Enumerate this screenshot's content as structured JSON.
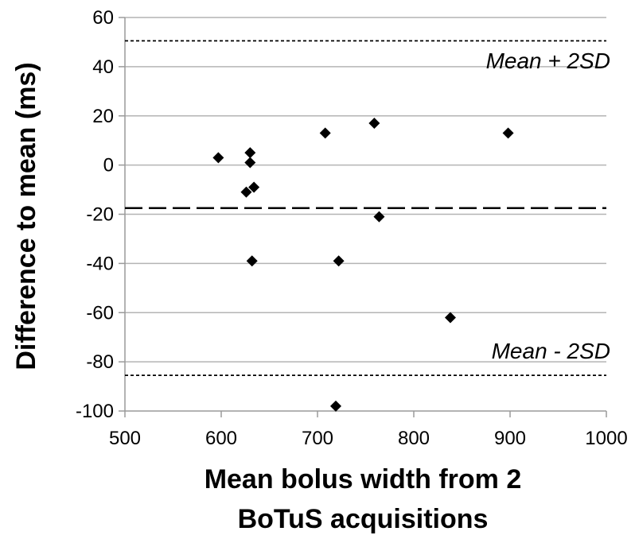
{
  "chart_data": {
    "type": "scatter",
    "title": "",
    "xlabel_lines": [
      "Mean  bolus width from 2",
      "BoTuS acquisitions"
    ],
    "ylabel": "Difference to mean (ms)",
    "xlim": [
      500,
      1000
    ],
    "ylim": [
      -100,
      60
    ],
    "x_ticks": [
      500,
      600,
      700,
      800,
      900,
      1000
    ],
    "y_ticks": [
      60,
      40,
      20,
      0,
      -20,
      -40,
      -60,
      -80,
      -100
    ],
    "grid": "horizontal",
    "points": [
      {
        "x": 597,
        "y": 3
      },
      {
        "x": 630,
        "y": 5
      },
      {
        "x": 630,
        "y": 1
      },
      {
        "x": 626,
        "y": -11
      },
      {
        "x": 634,
        "y": -9
      },
      {
        "x": 632,
        "y": -39
      },
      {
        "x": 708,
        "y": 13
      },
      {
        "x": 722,
        "y": -39
      },
      {
        "x": 719,
        "y": -98
      },
      {
        "x": 759,
        "y": 17
      },
      {
        "x": 764,
        "y": -21
      },
      {
        "x": 838,
        "y": -62
      },
      {
        "x": 898,
        "y": 13
      }
    ],
    "reference_lines": [
      {
        "y": 50.5,
        "style": "dotted",
        "label": "Mean + 2SD"
      },
      {
        "y": -17.5,
        "style": "dashed",
        "label": ""
      },
      {
        "y": -85.5,
        "style": "dotted",
        "label": "Mean - 2SD"
      }
    ]
  },
  "colors": {
    "marker": "#000000",
    "gridline": "#b4b4b4",
    "axis": "#9a9a9a",
    "reference": "#000000"
  }
}
